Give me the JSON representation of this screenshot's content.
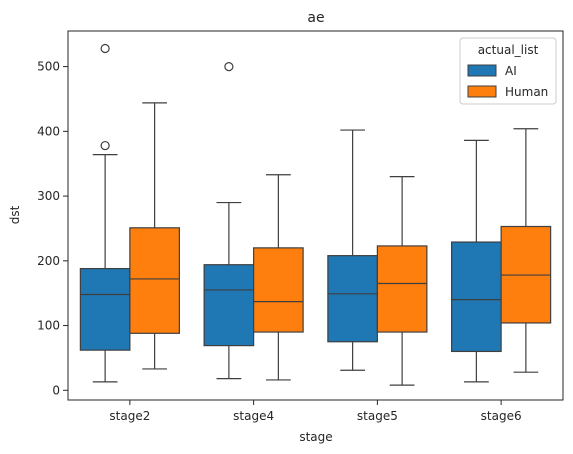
{
  "chart_data": {
    "type": "box",
    "title": "ae",
    "xlabel": "stage",
    "ylabel": "dst",
    "ylim": [
      -15,
      555
    ],
    "yticks": [
      0,
      100,
      200,
      300,
      400,
      500
    ],
    "categories": [
      "stage2",
      "stage4",
      "stage5",
      "stage6"
    ],
    "legend": {
      "title": "actual_list",
      "position": "top-right"
    },
    "grid": false,
    "series": [
      {
        "name": "AI",
        "color": "#1f77b4",
        "boxes": [
          {
            "whislo": 13,
            "q1": 62,
            "med": 148,
            "q3": 188,
            "whishi": 364,
            "fliers": [
              378,
              528
            ]
          },
          {
            "whislo": 18,
            "q1": 69,
            "med": 155,
            "q3": 194,
            "whishi": 290,
            "fliers": [
              500
            ]
          },
          {
            "whislo": 31,
            "q1": 75,
            "med": 149,
            "q3": 208,
            "whishi": 402,
            "fliers": []
          },
          {
            "whislo": 13,
            "q1": 60,
            "med": 140,
            "q3": 229,
            "whishi": 386,
            "fliers": []
          }
        ]
      },
      {
        "name": "Human",
        "color": "#ff7f0e",
        "boxes": [
          {
            "whislo": 33,
            "q1": 88,
            "med": 172,
            "q3": 251,
            "whishi": 444,
            "fliers": []
          },
          {
            "whislo": 16,
            "q1": 90,
            "med": 137,
            "q3": 220,
            "whishi": 333,
            "fliers": []
          },
          {
            "whislo": 8,
            "q1": 90,
            "med": 165,
            "q3": 223,
            "whishi": 330,
            "fliers": []
          },
          {
            "whislo": 28,
            "q1": 104,
            "med": 178,
            "q3": 253,
            "whishi": 404,
            "fliers": []
          }
        ]
      }
    ]
  }
}
